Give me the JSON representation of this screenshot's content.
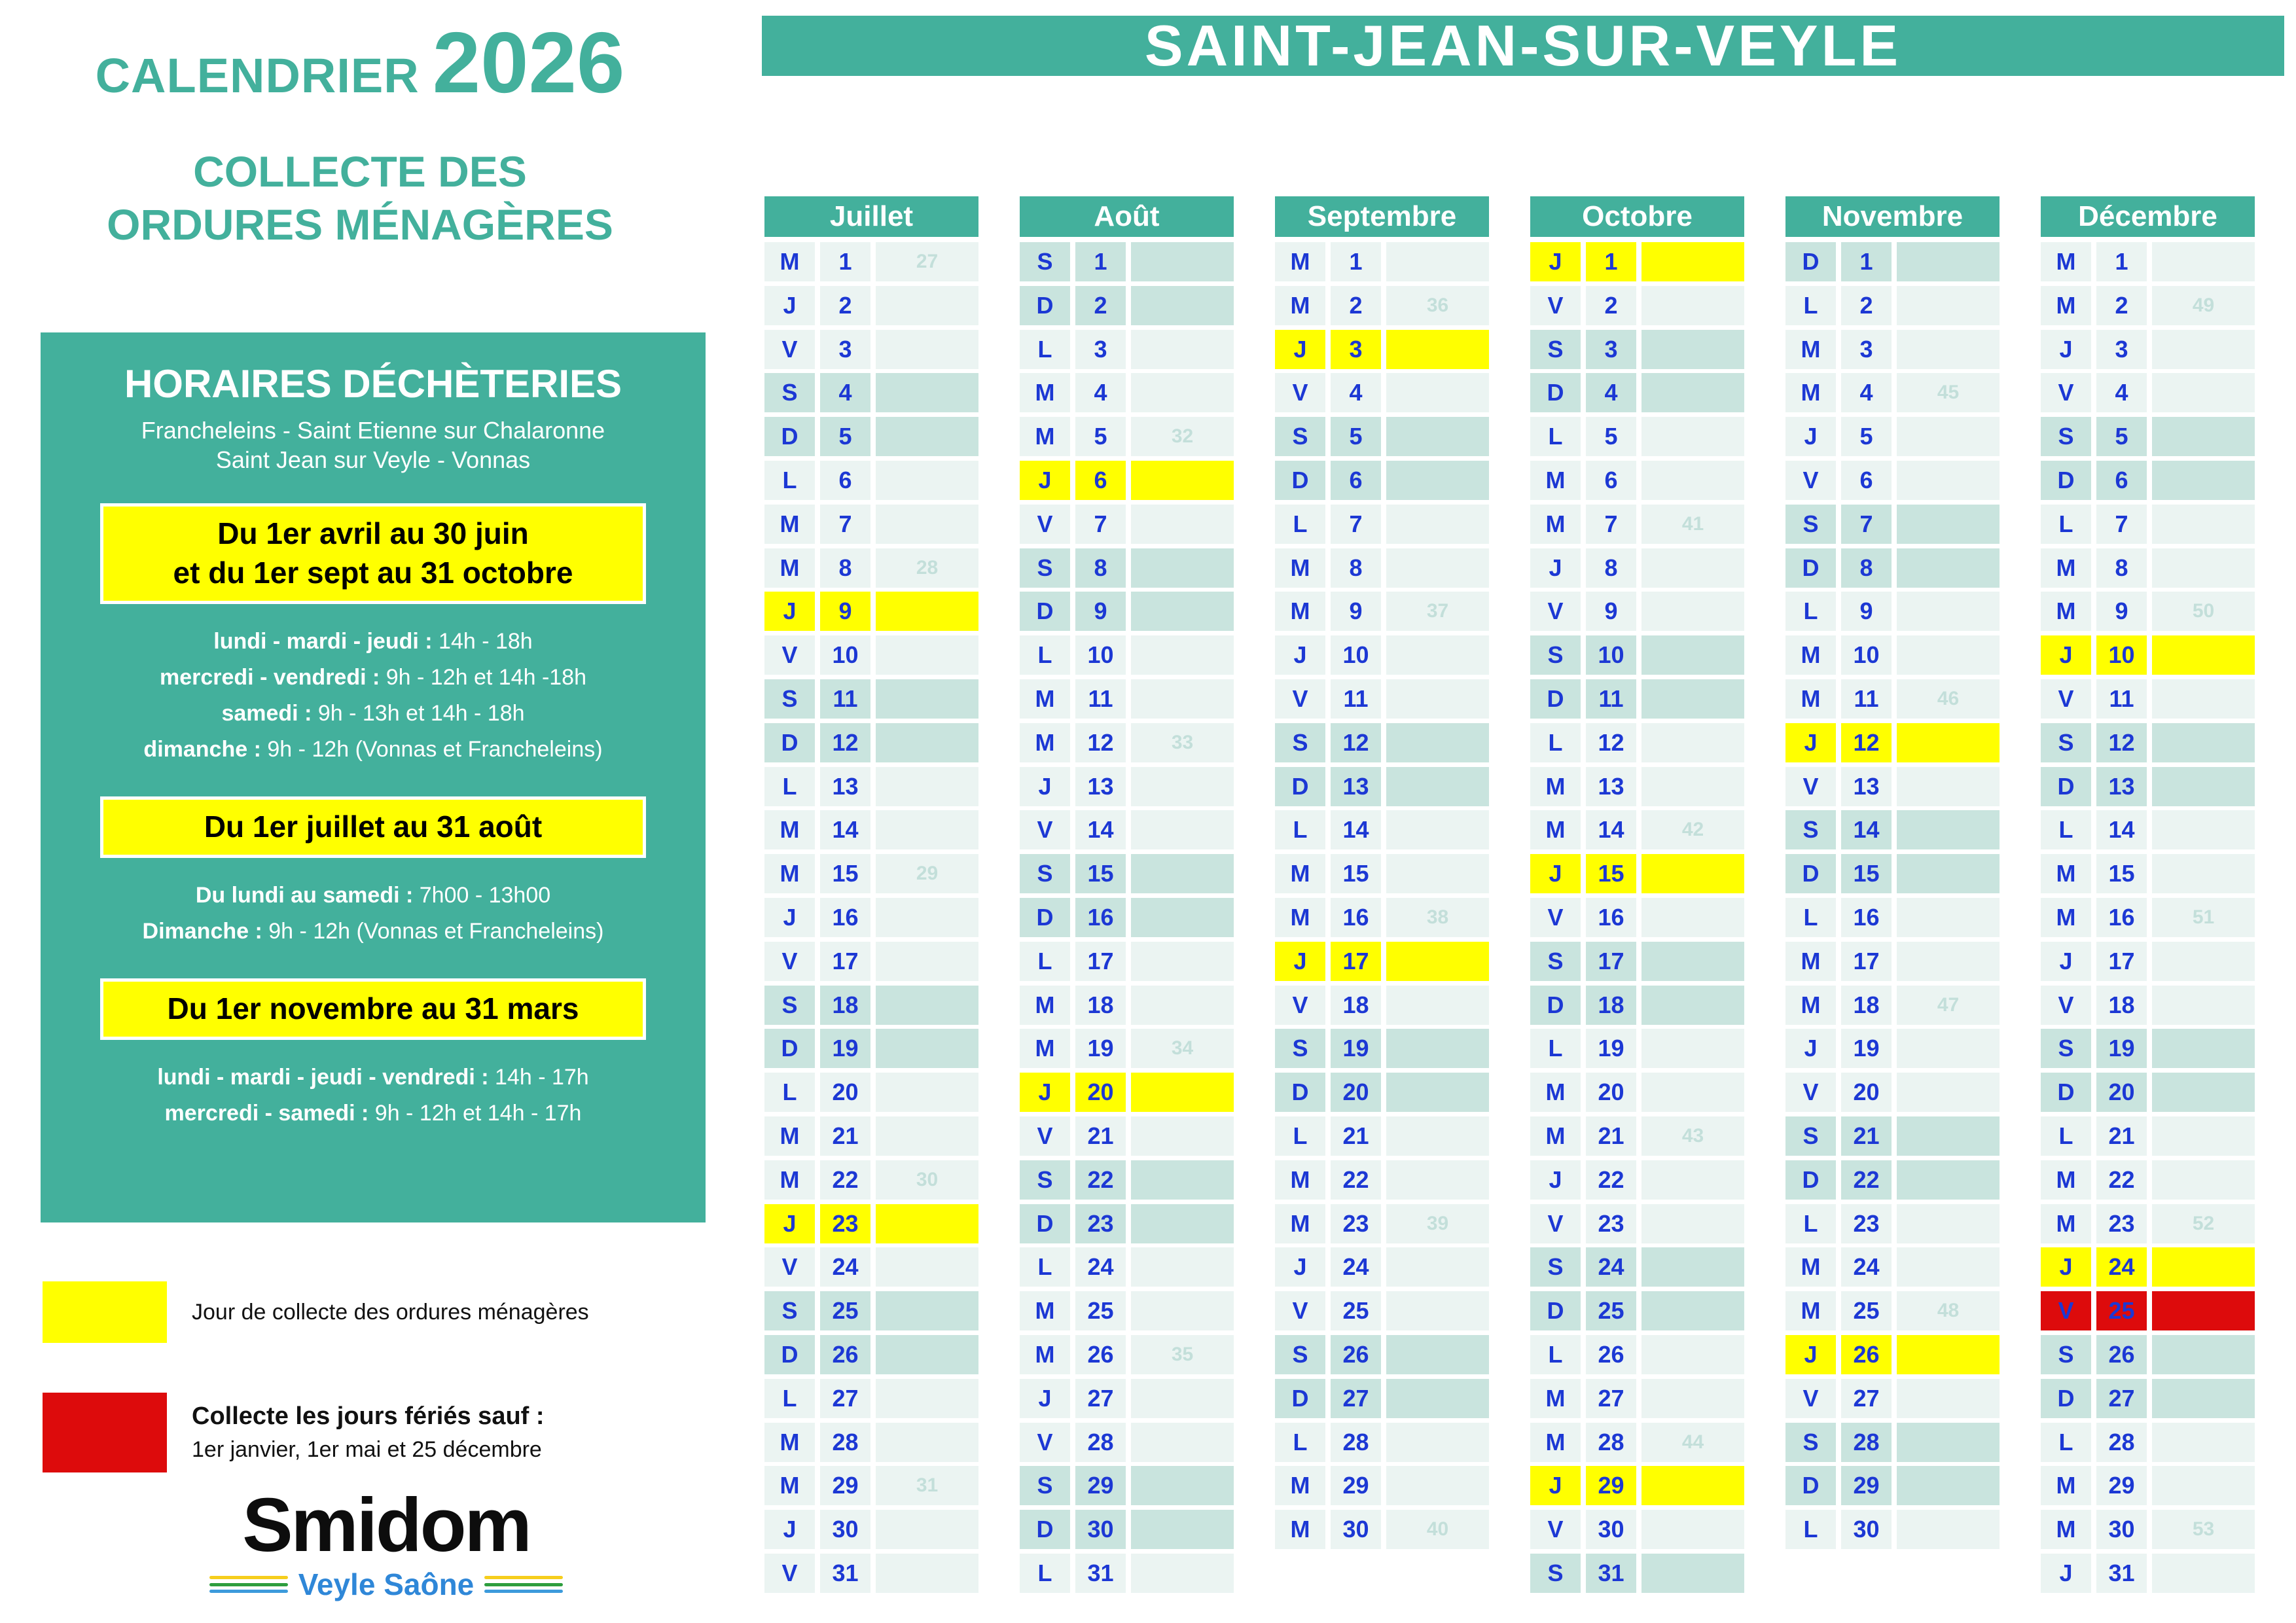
{
  "header": {
    "commune": "SAINT-JEAN-SUR-VEYLE"
  },
  "left": {
    "title": "CALENDRIER",
    "year": "2026",
    "subtitle_lines": [
      "COLLECTE DES",
      "ORDURES MÉNAGÈRES"
    ],
    "panel": {
      "heading": "HORAIRES DÉCHÈTERIES",
      "sites_line1": "Francheleins - Saint Etienne sur Chalaronne",
      "sites_line2": "Saint Jean sur Veyle - Vonnas",
      "periods": [
        {
          "banner_lines": [
            "Du 1er avril au 30 juin",
            "et du 1er sept au 31 octobre"
          ],
          "hours": [
            {
              "label": "lundi - mardi - jeudi",
              "value": "14h - 18h"
            },
            {
              "label": "mercredi - vendredi",
              "value": "9h - 12h et 14h -18h"
            },
            {
              "label": "samedi",
              "value": "9h - 13h et 14h - 18h"
            },
            {
              "label": "dimanche",
              "value": "9h - 12h (Vonnas et Francheleins)"
            }
          ]
        },
        {
          "banner_lines": [
            "Du 1er juillet au 31 août"
          ],
          "hours": [
            {
              "label": "Du lundi au samedi",
              "value": "7h00 - 13h00"
            },
            {
              "label": "Dimanche",
              "value": "9h - 12h (Vonnas et Francheleins)"
            }
          ]
        },
        {
          "banner_lines": [
            "Du 1er novembre au 31 mars"
          ],
          "hours": [
            {
              "label": "lundi - mardi - jeudi - vendredi",
              "value": "14h - 17h"
            },
            {
              "label": "mercredi - samedi",
              "value": "9h - 12h et 14h - 17h"
            }
          ]
        }
      ]
    },
    "legend": {
      "yellow": {
        "color": "#FFFF00",
        "text": "Jour de collecte des ordures ménagères"
      },
      "red": {
        "color": "#DD0B0C",
        "title": "Collecte les jours fériés sauf :",
        "subtitle": "1er janvier, 1er mai et 25 décembre"
      }
    },
    "logo": {
      "brand": "Smidom",
      "tagline": "Veyle Saône",
      "stripe_colors": [
        "#F6CE1C",
        "#2E9E3E",
        "#3D9BDC"
      ]
    }
  },
  "colors": {
    "teal": "#43B09C",
    "weekday_bg": "#EBF4F2",
    "weekend_bg": "#C9E4DE",
    "collect_yellow": "#FFFF00",
    "holiday_red": "#DD0B0C",
    "day_text_blue": "#1C38D4",
    "week_number_text": "#C3DFDA"
  },
  "calendar": {
    "day_letters": [
      "L",
      "M",
      "M",
      "J",
      "V",
      "S",
      "D"
    ],
    "months": [
      {
        "name": "Juillet",
        "days": 31,
        "first_dow": 2,
        "weeks": {
          "1": "27",
          "8": "28",
          "15": "29",
          "22": "30",
          "29": "31"
        },
        "yellow": [
          9,
          23
        ],
        "red": []
      },
      {
        "name": "Août",
        "days": 31,
        "first_dow": 5,
        "weeks": {
          "5": "32",
          "12": "33",
          "19": "34",
          "26": "35"
        },
        "yellow": [
          6,
          20
        ],
        "red": []
      },
      {
        "name": "Septembre",
        "days": 30,
        "first_dow": 1,
        "weeks": {
          "2": "36",
          "9": "37",
          "16": "38",
          "23": "39",
          "30": "40"
        },
        "yellow": [
          3,
          17
        ],
        "red": []
      },
      {
        "name": "Octobre",
        "days": 31,
        "first_dow": 3,
        "weeks": {
          "7": "41",
          "14": "42",
          "21": "43",
          "28": "44"
        },
        "yellow": [
          1,
          15,
          29
        ],
        "red": []
      },
      {
        "name": "Novembre",
        "days": 30,
        "first_dow": 6,
        "weeks": {
          "4": "45",
          "11": "46",
          "18": "47",
          "25": "48"
        },
        "yellow": [
          12,
          26
        ],
        "red": []
      },
      {
        "name": "Décembre",
        "days": 31,
        "first_dow": 1,
        "weeks": {
          "2": "49",
          "9": "50",
          "16": "51",
          "23": "52",
          "30": "53"
        },
        "yellow": [
          10,
          24
        ],
        "red": [
          25
        ]
      }
    ]
  }
}
